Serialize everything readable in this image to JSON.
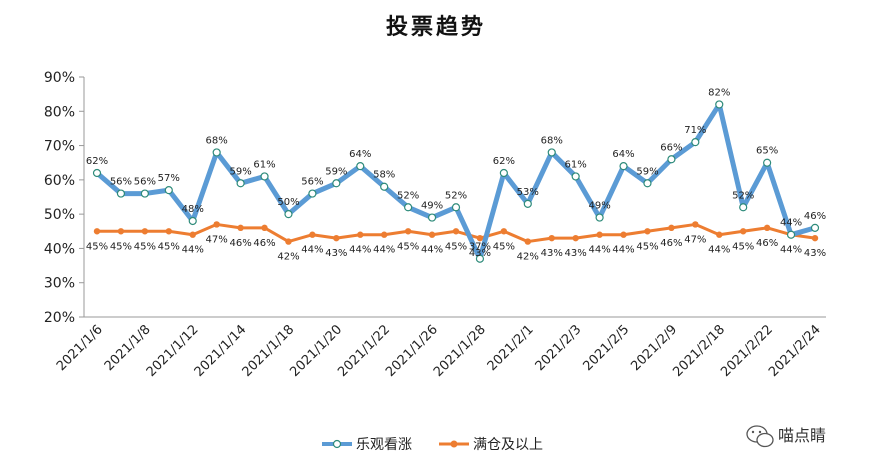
{
  "chart_data": {
    "type": "line",
    "title": "投票趋势",
    "ylim": [
      20,
      90
    ],
    "yticks": [
      "20%",
      "30%",
      "40%",
      "50%",
      "60%",
      "70%",
      "80%",
      "90%"
    ],
    "x_tick_labels": [
      "2021/1/6",
      "2021/1/8",
      "2021/1/12",
      "2021/1/14",
      "2021/1/18",
      "2021/1/20",
      "2021/1/22",
      "2021/1/26",
      "2021/1/28",
      "2021/2/1",
      "2021/2/3",
      "2021/2/5",
      "2021/2/9",
      "2021/2/18",
      "2021/2/22",
      "2021/2/24"
    ],
    "series": [
      {
        "name": "乐观看涨",
        "color": "#5B9BD5",
        "values": [
          62,
          56,
          56,
          57,
          48,
          68,
          59,
          61,
          50,
          56,
          59,
          64,
          58,
          52,
          49,
          52,
          37,
          62,
          53,
          68,
          61,
          49,
          64,
          59,
          66,
          71,
          82,
          52,
          65,
          44,
          46
        ]
      },
      {
        "name": "满仓及以上",
        "color": "#ED7D31",
        "values": [
          45,
          45,
          45,
          45,
          44,
          47,
          46,
          46,
          42,
          44,
          43,
          44,
          44,
          45,
          44,
          45,
          43,
          45,
          42,
          43,
          43,
          44,
          44,
          45,
          46,
          47,
          44,
          45,
          46,
          44,
          43
        ]
      }
    ],
    "legend_position": "bottom"
  },
  "watermark": "喵点睛"
}
